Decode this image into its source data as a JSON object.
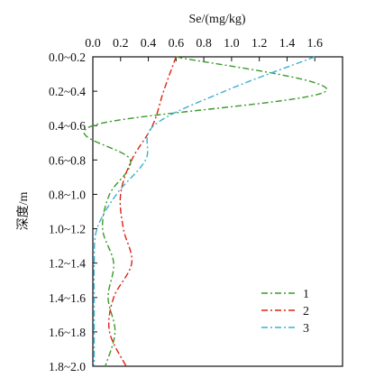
{
  "chart_data": {
    "type": "line",
    "orientation": "depth-profile",
    "xlabel": "Se/(mg/kg)",
    "ylabel": "深度/m",
    "x_axis_position": "top",
    "xlim": [
      0,
      1.8
    ],
    "x_ticks": [
      0,
      0.2,
      0.4,
      0.6,
      0.8,
      1.0,
      1.2,
      1.4,
      1.6
    ],
    "x_tick_labels": [
      "0.0",
      "0.2",
      "0.4",
      "0.6",
      "0.8",
      "1.0",
      "1.2",
      "1.4",
      "1.6"
    ],
    "categories": [
      "0.0~0.2",
      "0.2~0.4",
      "0.4~0.6",
      "0.6~0.8",
      "0.8~1.0",
      "1.0~1.2",
      "1.2~1.4",
      "1.4~1.6",
      "1.6~1.8",
      "1.8~2.0"
    ],
    "grid": false,
    "legend_position": "bottom-right",
    "series": [
      {
        "name": "1",
        "color": "#3a9a2a",
        "dash": "dash-dot",
        "values": [
          0.6,
          1.68,
          0.0,
          0.27,
          0.12,
          0.07,
          0.15,
          0.11,
          0.16,
          0.09
        ]
      },
      {
        "name": "2",
        "color": "#dd2211",
        "dash": "dash-dot",
        "values": [
          0.6,
          0.51,
          0.43,
          0.28,
          0.2,
          0.22,
          0.28,
          0.15,
          0.12,
          0.24
        ]
      },
      {
        "name": "3",
        "color": "#3ab0d0",
        "dash": "dash-dot",
        "values": [
          1.6,
          0.95,
          0.44,
          0.38,
          0.17,
          0.03,
          0.01,
          0.01,
          0.01,
          0.01
        ]
      }
    ]
  }
}
